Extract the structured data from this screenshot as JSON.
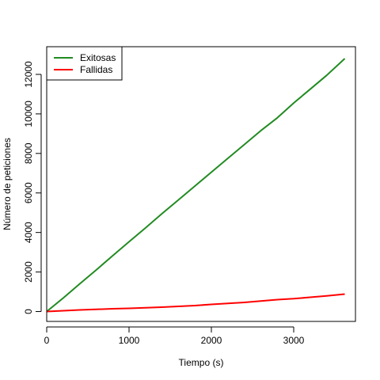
{
  "chart_data": {
    "type": "line",
    "title": "",
    "xlabel": "Tiempo (s)",
    "ylabel": "Número de peticiones",
    "xlim": [
      0,
      3750
    ],
    "ylim": [
      -500,
      13400
    ],
    "xticks": [
      0,
      1000,
      2000,
      3000
    ],
    "yticks": [
      0,
      2000,
      4000,
      6000,
      8000,
      10000,
      12000
    ],
    "grid": false,
    "legend_position": "top-left",
    "series": [
      {
        "name": "Exitosas",
        "color": "#228B22",
        "x": [
          0,
          200,
          400,
          600,
          800,
          1000,
          1200,
          1400,
          1600,
          1800,
          2000,
          2200,
          2400,
          2600,
          2800,
          3000,
          3200,
          3400,
          3620
        ],
        "y": [
          0,
          680,
          1400,
          2100,
          2820,
          3530,
          4230,
          4950,
          5650,
          6350,
          7050,
          7750,
          8450,
          9150,
          9800,
          10550,
          11250,
          11950,
          12800
        ]
      },
      {
        "name": "Fallidas",
        "color": "#FF0000",
        "x": [
          0,
          200,
          400,
          600,
          800,
          1000,
          1200,
          1400,
          1600,
          1800,
          2000,
          2200,
          2400,
          2600,
          2800,
          3000,
          3200,
          3400,
          3620
        ],
        "y": [
          0,
          40,
          80,
          110,
          140,
          160,
          190,
          220,
          260,
          300,
          360,
          410,
          460,
          530,
          600,
          650,
          720,
          790,
          880
        ]
      }
    ]
  }
}
